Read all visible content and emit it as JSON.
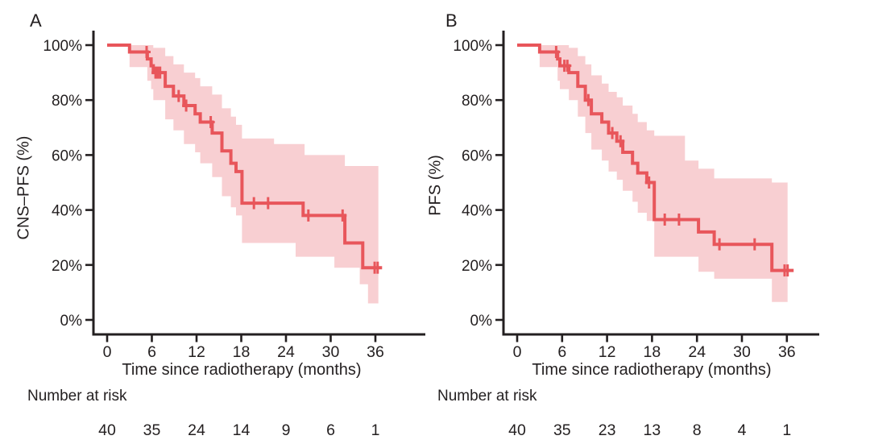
{
  "figure": {
    "background": "#ffffff",
    "colors": {
      "line": "#e8565b",
      "band": "#f8cfd2",
      "axis": "#231f20",
      "text": "#231f20"
    }
  },
  "chart_data": [
    {
      "type": "line",
      "subtype": "kaplan_meier_step",
      "letter": "A",
      "title": "",
      "xlabel": "Time since radiotherapy (months)",
      "ylabel": "CNS–PFS (%)",
      "x_ticks": [
        0,
        6,
        12,
        18,
        24,
        30,
        36
      ],
      "y_ticks_pct": [
        0,
        20,
        40,
        60,
        80,
        100
      ],
      "y_tick_labels": [
        "0%",
        "20%",
        "40%",
        "60%",
        "80%",
        "100%"
      ],
      "xlim": [
        0,
        42
      ],
      "ylim": [
        0,
        100
      ],
      "grid": false,
      "steps": [
        [
          0,
          100
        ],
        [
          3,
          97.5
        ],
        [
          5.4,
          95
        ],
        [
          5.9,
          92.5
        ],
        [
          6.2,
          90
        ],
        [
          7.8,
          85
        ],
        [
          8.9,
          81.5
        ],
        [
          10.3,
          78
        ],
        [
          11.8,
          75
        ],
        [
          12.5,
          72
        ],
        [
          14.1,
          68
        ],
        [
          15.4,
          61.5
        ],
        [
          16.6,
          57
        ],
        [
          17.3,
          54
        ],
        [
          18.1,
          42.5
        ],
        [
          26.3,
          38
        ],
        [
          31.9,
          28
        ],
        [
          34.3,
          19
        ]
      ],
      "end_month": 36.9,
      "censor_marks": [
        [
          5.3,
          97.5
        ],
        [
          6.5,
          90
        ],
        [
          6.8,
          90
        ],
        [
          7.1,
          90
        ],
        [
          9.6,
          81.5
        ],
        [
          10.6,
          78
        ],
        [
          13.9,
          72
        ],
        [
          19.7,
          42.5
        ],
        [
          21.6,
          42.5
        ],
        [
          27,
          38
        ],
        [
          31.6,
          38
        ],
        [
          35.9,
          19
        ],
        [
          36.3,
          19
        ]
      ],
      "confidence_band": [
        [
          3,
          92,
          100
        ],
        [
          5.4,
          87,
          100
        ],
        [
          5.9,
          84,
          100
        ],
        [
          6.2,
          80,
          99
        ],
        [
          7.8,
          73,
          96
        ],
        [
          8.9,
          69,
          93
        ],
        [
          10.3,
          64,
          90
        ],
        [
          11.8,
          61,
          88
        ],
        [
          12.5,
          57,
          85
        ],
        [
          14.1,
          52,
          82
        ],
        [
          15.4,
          45,
          77
        ],
        [
          16.6,
          41,
          74
        ],
        [
          17.3,
          38,
          71
        ],
        [
          18.1,
          28,
          66
        ],
        [
          22.4,
          28,
          64
        ],
        [
          25.3,
          23,
          64
        ],
        [
          26.5,
          23,
          60
        ],
        [
          30.5,
          19,
          60
        ],
        [
          31.9,
          19,
          56
        ],
        [
          33.9,
          13,
          56
        ],
        [
          35,
          6,
          56
        ]
      ],
      "band_end_month": 36.4,
      "number_at_risk_label": "Number at risk",
      "number_at_risk": [
        40,
        35,
        24,
        14,
        9,
        6,
        1
      ]
    },
    {
      "type": "line",
      "subtype": "kaplan_meier_step",
      "letter": "B",
      "title": "",
      "xlabel": "Time since radiotherapy (months)",
      "ylabel": "PFS (%)",
      "x_ticks": [
        0,
        6,
        12,
        18,
        24,
        30,
        36
      ],
      "y_ticks_pct": [
        0,
        20,
        40,
        60,
        80,
        100
      ],
      "y_tick_labels": [
        "0%",
        "20%",
        "40%",
        "60%",
        "80%",
        "100%"
      ],
      "xlim": [
        0,
        42
      ],
      "ylim": [
        0,
        100
      ],
      "grid": false,
      "steps": [
        [
          0,
          100
        ],
        [
          3,
          97.5
        ],
        [
          5.4,
          95
        ],
        [
          5.7,
          92.5
        ],
        [
          6.9,
          90
        ],
        [
          8.1,
          85
        ],
        [
          9.1,
          80
        ],
        [
          9.9,
          75
        ],
        [
          11.3,
          72
        ],
        [
          12.2,
          68
        ],
        [
          13.3,
          65
        ],
        [
          14.1,
          61
        ],
        [
          15.4,
          57
        ],
        [
          16.1,
          53.5
        ],
        [
          17.3,
          50
        ],
        [
          18.3,
          36.5
        ],
        [
          24.2,
          32
        ],
        [
          26.3,
          27.5
        ],
        [
          34,
          18
        ]
      ],
      "end_month": 36.9,
      "censor_marks": [
        [
          5.2,
          97.5
        ],
        [
          6.3,
          92.5
        ],
        [
          6.7,
          92.5
        ],
        [
          9.5,
          80
        ],
        [
          12.7,
          68
        ],
        [
          13.8,
          65
        ],
        [
          17.6,
          50
        ],
        [
          19.7,
          36.5
        ],
        [
          21.6,
          36.5
        ],
        [
          27,
          27.5
        ],
        [
          31.7,
          27.5
        ],
        [
          35.7,
          18
        ],
        [
          36.1,
          18
        ]
      ],
      "confidence_band": [
        [
          3,
          92,
          100
        ],
        [
          5.4,
          87,
          100
        ],
        [
          5.7,
          84,
          100
        ],
        [
          6.9,
          80,
          99
        ],
        [
          8.1,
          74,
          96
        ],
        [
          9.1,
          68,
          93
        ],
        [
          9.9,
          62,
          89
        ],
        [
          11.3,
          58,
          86
        ],
        [
          12.2,
          54,
          83
        ],
        [
          13.3,
          51,
          81
        ],
        [
          14.1,
          47,
          78
        ],
        [
          15.4,
          43,
          75
        ],
        [
          16.1,
          39,
          72
        ],
        [
          17.3,
          36,
          69
        ],
        [
          18.3,
          23,
          67
        ],
        [
          22.4,
          23,
          58
        ],
        [
          24.2,
          17.5,
          55
        ],
        [
          26.3,
          15,
          51.5
        ],
        [
          34,
          6.5,
          50
        ]
      ],
      "band_end_month": 36.1,
      "number_at_risk_label": "Number at risk",
      "number_at_risk": [
        40,
        35,
        23,
        13,
        8,
        4,
        1
      ]
    }
  ]
}
